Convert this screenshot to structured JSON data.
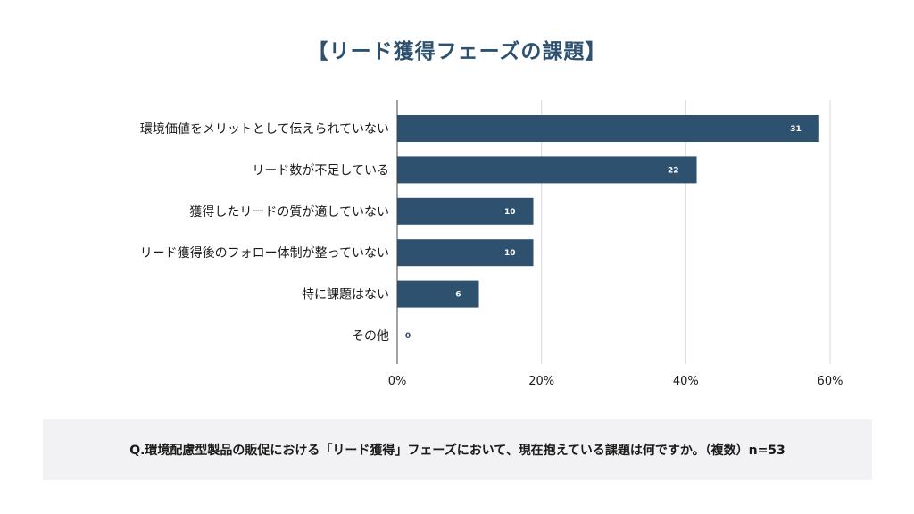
{
  "title": "【リード獲得フェーズの課題】",
  "colors": {
    "bar": "#2e5170",
    "grid": "#d9d9d9",
    "axis": "#444444",
    "label_text": "#1a1a1a",
    "value_text": "#ffffff",
    "zero_value_text": "#2e5170"
  },
  "chart_data": {
    "type": "bar",
    "orientation": "horizontal",
    "categories": [
      "環境価値をメリットとして伝えられていない",
      "リード数が不足している",
      "獲得したリードの質が適していない",
      "リード獲得後のフォロー体制が整っていない",
      "特に課題はない",
      "その他"
    ],
    "series": [
      {
        "counts": [
          31,
          22,
          10,
          10,
          6,
          0
        ]
      }
    ],
    "n": 53,
    "xlim": [
      0,
      60
    ],
    "xticks": [
      "0%",
      "20%",
      "40%",
      "60%"
    ],
    "xtick_values": [
      0,
      20,
      40,
      60
    ],
    "grid": true
  },
  "footnote": "Q.環境配慮型製品の販促における「リード獲得」フェーズにおいて、現在抱えている課題は何ですか。（複数）n=53"
}
